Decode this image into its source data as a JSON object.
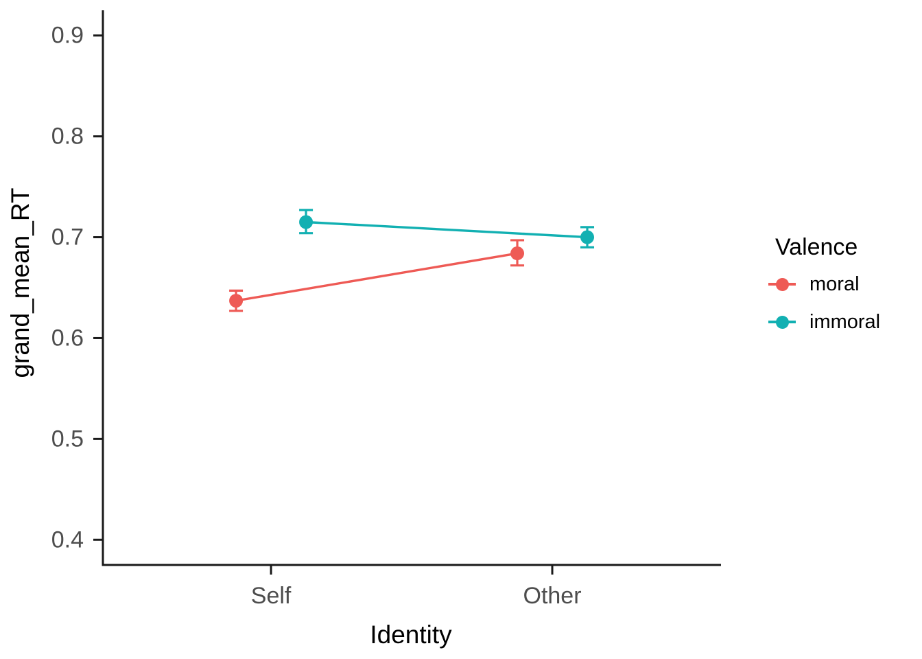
{
  "chart_data": {
    "type": "line",
    "title": "",
    "xlabel": "Identity",
    "ylabel": "grand_mean_RT",
    "categories": [
      "Self",
      "Other"
    ],
    "y_ticks": [
      0.4,
      0.5,
      0.6,
      0.7,
      0.8,
      0.9
    ],
    "ylim": [
      0.375,
      0.925
    ],
    "grid": false,
    "background": "#ffffff",
    "axis_color": "#1a1a1a",
    "tick_label_color": "#4d4d4d",
    "legend": {
      "title": "Valence",
      "position": "right"
    },
    "series": [
      {
        "name": "moral",
        "color": "#ee5a55",
        "values": [
          0.637,
          0.684
        ],
        "ymin": [
          0.627,
          0.672
        ],
        "ymax": [
          0.647,
          0.697
        ]
      },
      {
        "name": "immoral",
        "color": "#12b0b2",
        "values": [
          0.715,
          0.7
        ],
        "ymin": [
          0.704,
          0.69
        ],
        "ymax": [
          0.727,
          0.71
        ]
      }
    ]
  }
}
